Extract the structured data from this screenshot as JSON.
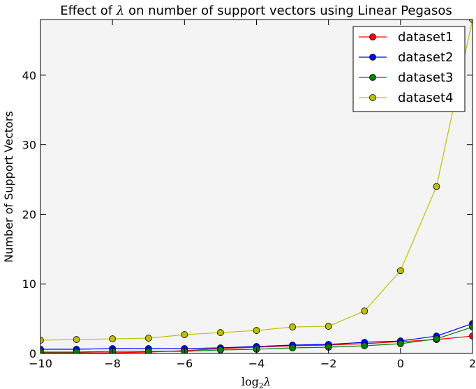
{
  "chart_data": {
    "type": "line",
    "title_prefix": "Effect of ",
    "title_symbol": "λ",
    "title_suffix": " on number of support vectors using Linear Pegasos",
    "xlabel_base": "log",
    "xlabel_sub": "2",
    "xlabel_symbol": "λ",
    "ylabel": "Number of Support Vectors",
    "xlim": [
      -10,
      2
    ],
    "ylim": [
      0,
      48
    ],
    "x_ticks": [
      -10,
      -8,
      -6,
      -4,
      -2,
      0,
      2
    ],
    "y_ticks": [
      0,
      10,
      20,
      30,
      40
    ],
    "grid": false,
    "legend_position": "top-right",
    "background": "#f4f4f4",
    "x": [
      -10,
      -9,
      -8,
      -7,
      -6,
      -5,
      -4,
      -3,
      -2,
      -1,
      0,
      1,
      2
    ],
    "series": [
      {
        "name": "dataset1",
        "color": "#ff0000",
        "values": [
          0.1,
          0.1,
          0.1,
          0.2,
          0.4,
          0.7,
          0.9,
          1.1,
          1.2,
          1.4,
          1.7,
          2.0,
          2.5
        ]
      },
      {
        "name": "dataset2",
        "color": "#0000ff",
        "values": [
          0.6,
          0.6,
          0.7,
          0.7,
          0.7,
          0.8,
          1.0,
          1.2,
          1.3,
          1.6,
          1.8,
          2.5,
          4.3
        ]
      },
      {
        "name": "dataset3",
        "color": "#008000",
        "values": [
          0.2,
          0.2,
          0.3,
          0.3,
          0.3,
          0.5,
          0.6,
          0.8,
          0.9,
          1.1,
          1.4,
          2.1,
          3.8
        ]
      },
      {
        "name": "dataset4",
        "color": "#bfbf00",
        "values": [
          1.9,
          2.0,
          2.1,
          2.2,
          2.7,
          3.0,
          3.3,
          3.8,
          3.9,
          6.1,
          11.9,
          24.0,
          48.0
        ]
      }
    ]
  }
}
